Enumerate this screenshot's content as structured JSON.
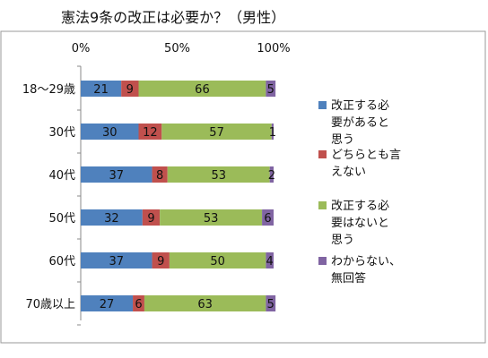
{
  "chart_data": {
    "type": "bar",
    "orientation": "horizontal-stacked-100",
    "title": "憲法9条の改正は必要か？（男性）",
    "categories": [
      "18～29歳",
      "30代",
      "40代",
      "50代",
      "60代",
      "70歳以上"
    ],
    "series": [
      {
        "name": "改正する必要があると思う",
        "values": [
          21,
          30,
          37,
          32,
          37,
          27
        ],
        "color": "#4F81BD"
      },
      {
        "name": "どちらとも言えない",
        "values": [
          9,
          12,
          8,
          9,
          9,
          6
        ],
        "color": "#C0504D"
      },
      {
        "name": "改正する必要はないと思う",
        "values": [
          66,
          57,
          53,
          53,
          50,
          63
        ],
        "color": "#9BBB59"
      },
      {
        "name": "わからない、無回答",
        "values": [
          5,
          1,
          2,
          6,
          4,
          5
        ],
        "color": "#8064A2"
      }
    ],
    "xticks": [
      "0%",
      "50%",
      "100%"
    ],
    "xlim": [
      0,
      100
    ],
    "grid": false,
    "legend": "right",
    "legend_lines": [
      [
        "改正する必",
        "要があると",
        "思う"
      ],
      [
        "どちらとも言",
        "えない"
      ],
      [
        "改正する必",
        "要はないと",
        "思う"
      ],
      [
        "わからない、",
        "無回答"
      ]
    ]
  }
}
